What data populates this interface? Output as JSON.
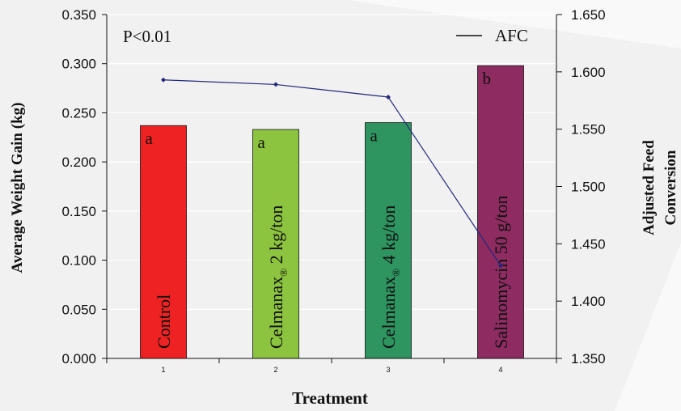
{
  "chart_data": {
    "type": "bar",
    "categories": [
      "1",
      "2",
      "3",
      "4"
    ],
    "bar_labels": [
      "Control",
      "Celmanax",
      "Celmanax",
      "Salinomycin 50 g/ton"
    ],
    "bar_label_parts": [
      {
        "main": "Control",
        "sub": "",
        "rest": ""
      },
      {
        "main": "Celmanax",
        "sub": "®",
        "rest": " 2 kg/ton"
      },
      {
        "main": "Celmanax",
        "sub": "®",
        "rest": " 4 kg/ton"
      },
      {
        "main": "Salinomycin 50 g/ton",
        "sub": "",
        "rest": ""
      }
    ],
    "values": [
      0.237,
      0.233,
      0.24,
      0.298
    ],
    "significance_letters": [
      "a",
      "a",
      "a",
      "b"
    ],
    "bar_colors": [
      "#ee2222",
      "#8cc43f",
      "#2e9460",
      "#8e2b61"
    ],
    "line_series": {
      "name": "AFC",
      "values": [
        1.593,
        1.589,
        1.578,
        1.431
      ],
      "color": "#22297a"
    },
    "xlabel": "Treatment",
    "ylabel": "Average Weight Gain (kg)",
    "y2label_lines": [
      "Adjusted Feed",
      "Conversion"
    ],
    "ylim": [
      0.0,
      0.35
    ],
    "y2lim": [
      1.35,
      1.65
    ],
    "yticks": [
      "0.000",
      "0.050",
      "0.100",
      "0.150",
      "0.200",
      "0.250",
      "0.300",
      "0.350"
    ],
    "y2ticks": [
      "1.350",
      "1.400",
      "1.450",
      "1.500",
      "1.550",
      "1.600",
      "1.650"
    ],
    "annotation": "P<0.01",
    "legend_label": "AFC",
    "legend_position": "top-right",
    "grid": true
  }
}
